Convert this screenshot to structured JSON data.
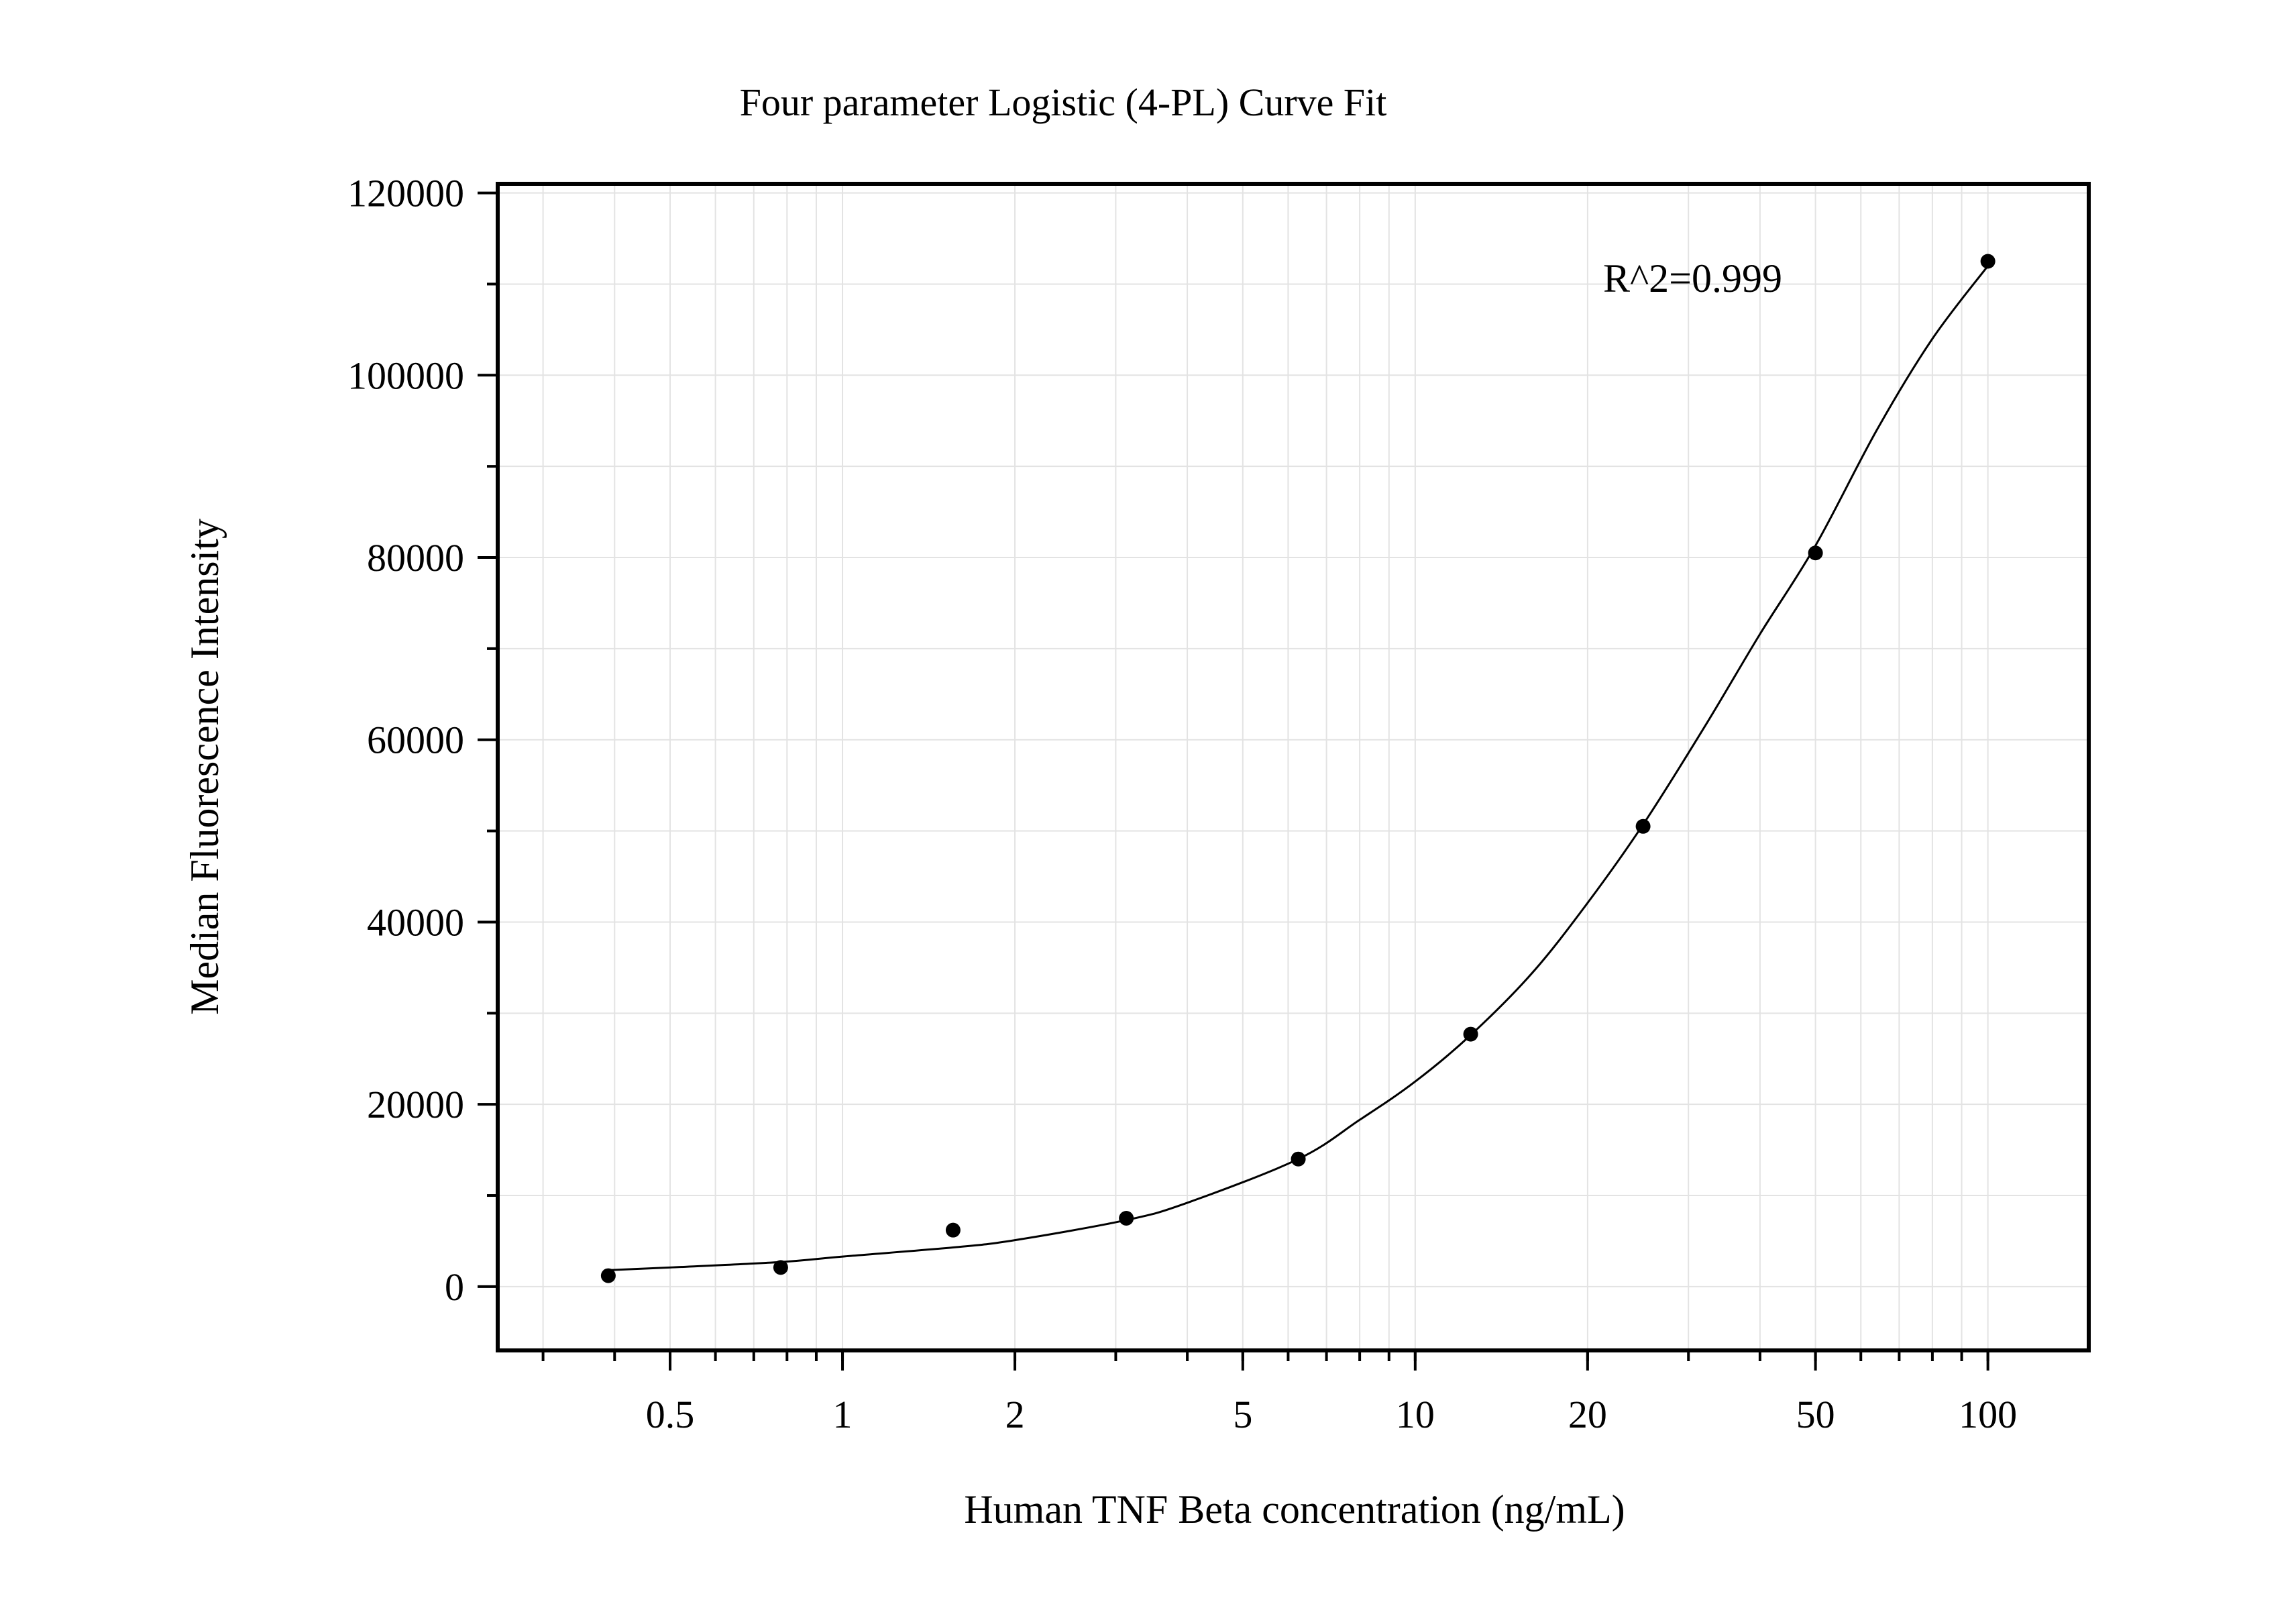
{
  "chart_data": {
    "type": "scatter",
    "title": "Four parameter Logistic (4-PL) Curve Fit",
    "xlabel": "Human TNF Beta concentration (ng/mL)",
    "ylabel": "Median Fluorescence Intensity",
    "x_scale": "log",
    "xlim": [
      0.25,
      150
    ],
    "ylim": [
      -7000,
      121000
    ],
    "x_ticks": [
      0.5,
      1,
      2,
      5,
      10,
      20,
      50,
      100
    ],
    "x_tick_labels": [
      "0.5",
      "1",
      "2",
      "5",
      "10",
      "20",
      "50",
      "100"
    ],
    "y_ticks": [
      0,
      20000,
      40000,
      60000,
      80000,
      100000,
      120000
    ],
    "y_tick_labels": [
      "0",
      "20000",
      "40000",
      "60000",
      "80000",
      "100000",
      "120000"
    ],
    "grid": true,
    "annotation": "R^2=0.999",
    "series": [
      {
        "kind": "points",
        "x": [
          0.39,
          0.78,
          1.56,
          3.13,
          6.25,
          12.5,
          25,
          50,
          100
        ],
        "y": [
          1200,
          2100,
          6200,
          7500,
          14000,
          27700,
          50500,
          80500,
          112500
        ]
      },
      {
        "kind": "fit-curve",
        "model": "4PL",
        "x": [
          0.39,
          0.5,
          0.78,
          1,
          1.56,
          2,
          3.13,
          4,
          6.25,
          8,
          10,
          12.5,
          16,
          20,
          25,
          32,
          40,
          50,
          64,
          80,
          100
        ],
        "y": [
          1800,
          2100,
          2700,
          3300,
          4300,
          5100,
          7300,
          9200,
          14000,
          18300,
          22500,
          27600,
          34400,
          42100,
          50700,
          61400,
          71600,
          81300,
          94000,
          104000,
          112000
        ]
      }
    ]
  }
}
